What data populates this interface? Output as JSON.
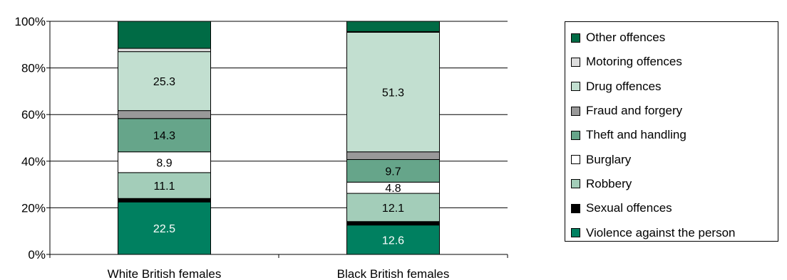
{
  "chart_data": {
    "type": "bar",
    "stacked": true,
    "percent_stacked": true,
    "categories": [
      "White British females",
      "Black British females"
    ],
    "yticks": [
      "0%",
      "20%",
      "40%",
      "60%",
      "80%",
      "100%"
    ],
    "ylim": [
      0,
      100
    ],
    "legend_position": "right",
    "series": [
      {
        "name": "Violence against the person",
        "color": "#008060",
        "values": [
          22.5,
          12.6
        ],
        "labels": [
          "22.5",
          "12.6"
        ],
        "label_color": "#ffffff"
      },
      {
        "name": "Sexual offences",
        "color": "#000000",
        "values": [
          1.5,
          1.5
        ],
        "labels": [
          "",
          ""
        ],
        "label_color": "#000000"
      },
      {
        "name": "Robbery",
        "color": "#a3cdb9",
        "values": [
          11.1,
          12.1
        ],
        "labels": [
          "11.1",
          "12.1"
        ],
        "label_color": "#000000"
      },
      {
        "name": "Burglary",
        "color": "#ffffff",
        "values": [
          8.9,
          4.8
        ],
        "labels": [
          "8.9",
          "4.8"
        ],
        "label_color": "#000000"
      },
      {
        "name": "Theft and handling",
        "color": "#66a58a",
        "values": [
          14.3,
          9.7
        ],
        "labels": [
          "14.3",
          "9.7"
        ],
        "label_color": "#000000"
      },
      {
        "name": "Fraud and forgery",
        "color": "#999999",
        "values": [
          3.4,
          3.3
        ],
        "labels": [
          "",
          ""
        ],
        "label_color": "#000000"
      },
      {
        "name": "Drug offences",
        "color": "#c2dfd0",
        "values": [
          25.3,
          51.3
        ],
        "labels": [
          "25.3",
          "51.3"
        ],
        "label_color": "#000000"
      },
      {
        "name": "Motoring offences",
        "color": "#dddddd",
        "values": [
          1.4,
          0.3
        ],
        "labels": [
          "",
          ""
        ],
        "label_color": "#000000"
      },
      {
        "name": "Other offences",
        "color": "#006b45",
        "values": [
          11.6,
          4.4
        ],
        "labels": [
          "",
          ""
        ],
        "label_color": "#ffffff"
      }
    ]
  }
}
